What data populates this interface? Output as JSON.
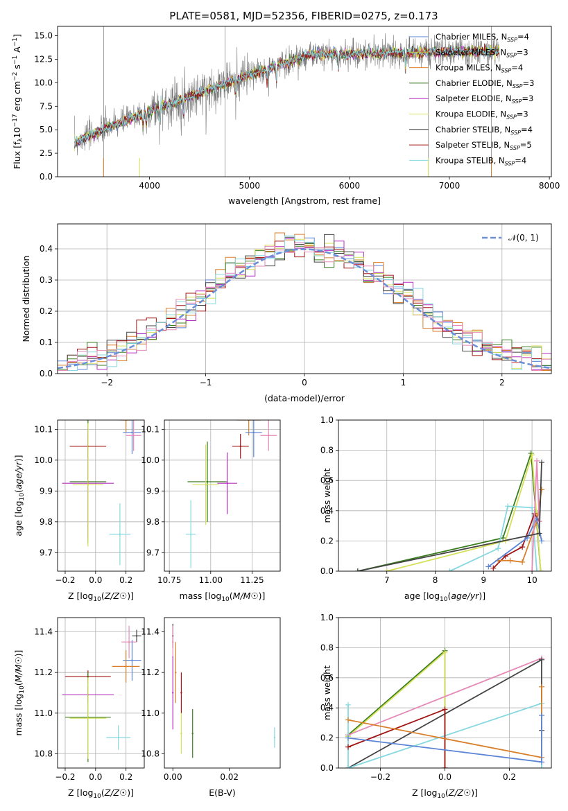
{
  "figure": {
    "title": "PLATE=0581, MJD=52356, FIBERID=0275, z=0.173"
  },
  "colors": {
    "chabrier_miles": "#5b84d6",
    "salpeter_miles": "#cccc33",
    "kroupa_miles": "#d97f2a",
    "chabrier_elodie": "#3a7d1e",
    "salpeter_elodie": "#b52fc0",
    "kroupa_elodie": "#d6e05a",
    "chabrier_stelib": "#444444",
    "salpeter_stelib": "#a31515",
    "kroupa_stelib": "#86d8e0",
    "gauss": "#6a8fd8",
    "pink": "#e68ab8"
  },
  "chart_data": [
    {
      "id": "spectrum",
      "type": "line",
      "xlabel": "wavelength [Angstrom, rest frame]",
      "ylabel": "Flux [f$_\\lambda$10$^{-17}$ erg cm$^{-2}$ s$^{-1}$ A$^{-1}$]",
      "ylabel_main": "Flux [f",
      "ylabel_rest": "10",
      "ylabel_sup1": "−17",
      "ylabel_mid": " erg cm",
      "ylabel_sup2": "−2",
      "ylabel_s": " s",
      "ylabel_sup3": "−1",
      "ylabel_a": " A",
      "ylabel_sup4": "−1",
      "ylabel_end": "]",
      "xlim": [
        3080,
        8020
      ],
      "ylim": [
        0,
        16
      ],
      "xticks": [
        4000,
        5000,
        6000,
        7000,
        8000
      ],
      "yticks": [
        0.0,
        2.5,
        5.0,
        7.5,
        10.0,
        12.5,
        15.0
      ],
      "grid": false,
      "legend_position": "lower-right",
      "data_range": [
        3250,
        7500
      ],
      "skyline_x": [
        3540,
        4755,
        6790,
        7420
      ],
      "legend": [
        {
          "label": "Chabrier MILES, N",
          "sub": "SSP",
          "n": "=4",
          "color_key": "chabrier_miles"
        },
        {
          "label": "Salpeter MILES, N",
          "sub": "SSP",
          "n": "=3",
          "color_key": "salpeter_miles"
        },
        {
          "label": "Kroupa MILES, N",
          "sub": "SSP",
          "n": "=4",
          "color_key": "kroupa_miles"
        },
        {
          "label": "Chabrier ELODIE, N",
          "sub": "SSP",
          "n": "=3",
          "color_key": "chabrier_elodie"
        },
        {
          "label": "Salpeter ELODIE, N",
          "sub": "SSP",
          "n": "=3",
          "color_key": "salpeter_elodie"
        },
        {
          "label": "Kroupa ELODIE, N",
          "sub": "SSP",
          "n": "=3",
          "color_key": "kroupa_elodie"
        },
        {
          "label": "Chabrier STELIB, N",
          "sub": "SSP",
          "n": "=4",
          "color_key": "chabrier_stelib"
        },
        {
          "label": "Salpeter STELIB, N",
          "sub": "SSP",
          "n": "=5",
          "color_key": "salpeter_stelib"
        },
        {
          "label": "Kroupa STELIB, N",
          "sub": "SSP",
          "n": "=4",
          "color_key": "kroupa_stelib"
        }
      ]
    },
    {
      "id": "residuals",
      "type": "line",
      "xlabel": "(data-model)/error",
      "ylabel": "Normed distribution",
      "xlim": [
        -2.5,
        2.5
      ],
      "ylim": [
        0,
        0.48
      ],
      "xticks": [
        -2,
        -1,
        0,
        1,
        2
      ],
      "yticks": [
        0.0,
        0.1,
        0.2,
        0.3,
        0.4
      ],
      "grid": true,
      "legend_position": "top-right",
      "legend_label": "𝒩(0, 1)",
      "bin_width": 0.1
    },
    {
      "id": "age_vs_Z",
      "type": "scatter",
      "xlabel": "Z [log",
      "xlabel_full": "Z [log$_{10}$($Z/Z_\\odot$)]",
      "ylabel": "age  [log$_{10}$($age/yr$)]",
      "xlim": [
        -0.25,
        0.32
      ],
      "ylim": [
        9.64,
        10.13
      ],
      "xticks": [
        -0.2,
        0.0,
        0.2
      ],
      "yticks": [
        9.7,
        9.8,
        9.9,
        10.0,
        10.1
      ],
      "grid": true,
      "points": [
        {
          "x": 0.27,
          "y": 10.16,
          "xerr": 0.03,
          "yerr": 0.02,
          "color_key": "chabrier_stelib"
        },
        {
          "x": 0.2,
          "y": 10.13,
          "xerr": 0.04,
          "yerr": 0.04,
          "color_key": "kroupa_miles"
        },
        {
          "x": 0.24,
          "y": 10.09,
          "xerr": 0.06,
          "yerr": 0.07,
          "color_key": "chabrier_miles"
        },
        {
          "x": 0.25,
          "y": 10.08,
          "xerr": 0.05,
          "yerr": 0.05,
          "color_key": "pink"
        },
        {
          "x": -0.05,
          "y": 10.045,
          "xerr": 0.12,
          "yerr": 0.04,
          "color_key": "salpeter_stelib"
        },
        {
          "x": -0.05,
          "y": 9.93,
          "xerr": 0.12,
          "yerr": 0.2,
          "color_key": "chabrier_elodie"
        },
        {
          "x": -0.05,
          "y": 9.925,
          "xerr": 0.17,
          "yerr": 0.18,
          "color_key": "salpeter_elodie"
        },
        {
          "x": -0.05,
          "y": 9.92,
          "xerr": 0.1,
          "yerr": 0.2,
          "color_key": "kroupa_elodie"
        },
        {
          "x": 0.16,
          "y": 9.76,
          "xerr": 0.07,
          "yerr": 0.1,
          "color_key": "kroupa_stelib"
        }
      ]
    },
    {
      "id": "age_vs_mass",
      "type": "scatter",
      "xlabel": "mass [log",
      "ylabel": "",
      "xlim": [
        10.72,
        11.42
      ],
      "ylim": [
        9.64,
        10.13
      ],
      "xticks": [
        10.75,
        11.0,
        11.25
      ],
      "yticks": [
        9.7,
        9.8,
        9.9,
        10.0,
        10.1
      ],
      "grid": true,
      "points": [
        {
          "x": 11.37,
          "y": 10.16,
          "xerr": 0.02,
          "yerr": 0.02,
          "color_key": "chabrier_stelib"
        },
        {
          "x": 11.23,
          "y": 10.13,
          "xerr": 0.07,
          "yerr": 0.05,
          "color_key": "kroupa_miles"
        },
        {
          "x": 11.26,
          "y": 10.09,
          "xerr": 0.05,
          "yerr": 0.08,
          "color_key": "chabrier_miles"
        },
        {
          "x": 11.35,
          "y": 10.08,
          "xerr": 0.05,
          "yerr": 0.05,
          "color_key": "pink"
        },
        {
          "x": 11.18,
          "y": 10.045,
          "xerr": 0.05,
          "yerr": 0.04,
          "color_key": "salpeter_stelib"
        },
        {
          "x": 10.98,
          "y": 9.93,
          "xerr": 0.12,
          "yerr": 0.13,
          "color_key": "chabrier_elodie"
        },
        {
          "x": 11.1,
          "y": 9.925,
          "xerr": 0.06,
          "yerr": 0.1,
          "color_key": "salpeter_elodie"
        },
        {
          "x": 10.97,
          "y": 9.92,
          "xerr": 0.08,
          "yerr": 0.13,
          "color_key": "kroupa_elodie"
        },
        {
          "x": 10.88,
          "y": 9.76,
          "xerr": 0.03,
          "yerr": 0.11,
          "color_key": "kroupa_stelib"
        }
      ]
    },
    {
      "id": "weight_vs_age",
      "type": "line",
      "xlabel": "age  [log",
      "ylabel": "mass weight",
      "xlim": [
        6.0,
        10.4
      ],
      "ylim": [
        0,
        1.0
      ],
      "xticks": [
        7,
        8,
        9,
        10
      ],
      "yticks": [
        0.0,
        0.2,
        0.4,
        0.6,
        0.8,
        1.0
      ],
      "grid": true,
      "series": [
        {
          "color_key": "chabrier_elodie",
          "x": [
            6.4,
            9.4,
            9.98,
            10.18
          ],
          "y": [
            0.0,
            0.22,
            0.78,
            0.0
          ]
        },
        {
          "color_key": "kroupa_elodie",
          "x": [
            7.0,
            9.45,
            10.0,
            10.18
          ],
          "y": [
            0.0,
            0.2,
            0.77,
            0.0
          ]
        },
        {
          "color_key": "kroupa_stelib",
          "x": [
            8.3,
            9.3,
            9.5,
            10.0,
            10.1
          ],
          "y": [
            0.0,
            0.15,
            0.43,
            0.42,
            0.0
          ]
        },
        {
          "color_key": "salpeter_stelib",
          "x": [
            9.2,
            9.45,
            9.8,
            10.05,
            10.15
          ],
          "y": [
            0.02,
            0.1,
            0.16,
            0.38,
            0.33
          ]
        },
        {
          "color_key": "kroupa_miles",
          "x": [
            9.3,
            9.55,
            9.8,
            10.1,
            10.2
          ],
          "y": [
            0.07,
            0.07,
            0.06,
            0.33,
            0.54
          ]
        },
        {
          "color_key": "chabrier_miles",
          "x": [
            9.1,
            9.9,
            10.1,
            10.2
          ],
          "y": [
            0.03,
            0.22,
            0.35,
            0.2
          ]
        },
        {
          "color_key": "pink",
          "x": [
            10.0,
            10.1,
            10.15
          ],
          "y": [
            0.0,
            0.73,
            0.33
          ]
        },
        {
          "color_key": "chabrier_stelib",
          "x": [
            6.4,
            10.15,
            10.2
          ],
          "y": [
            0.0,
            0.25,
            0.72
          ]
        }
      ]
    },
    {
      "id": "mass_vs_Z",
      "type": "scatter",
      "xlabel": "Z [log",
      "ylabel": "mass [log",
      "xlim": [
        -0.25,
        0.32
      ],
      "ylim": [
        10.73,
        11.47
      ],
      "xticks": [
        -0.2,
        0.0,
        0.2
      ],
      "yticks": [
        10.8,
        11.0,
        11.2,
        11.4
      ],
      "grid": true,
      "points": [
        {
          "x": 0.27,
          "y": 11.38,
          "xerr": 0.03,
          "yerr": 0.03,
          "color_key": "chabrier_stelib"
        },
        {
          "x": 0.22,
          "y": 11.35,
          "xerr": 0.05,
          "yerr": 0.08,
          "color_key": "pink"
        },
        {
          "x": 0.24,
          "y": 11.26,
          "xerr": 0.06,
          "yerr": 0.1,
          "color_key": "chabrier_miles"
        },
        {
          "x": 0.2,
          "y": 11.23,
          "xerr": 0.09,
          "yerr": 0.08,
          "color_key": "kroupa_miles"
        },
        {
          "x": -0.05,
          "y": 11.18,
          "xerr": 0.15,
          "yerr": 0.03,
          "color_key": "salpeter_stelib"
        },
        {
          "x": -0.05,
          "y": 11.09,
          "xerr": 0.17,
          "yerr": 0.04,
          "color_key": "salpeter_elodie"
        },
        {
          "x": -0.05,
          "y": 10.98,
          "xerr": 0.15,
          "yerr": 0.22,
          "color_key": "chabrier_elodie"
        },
        {
          "x": -0.05,
          "y": 10.975,
          "xerr": 0.12,
          "yerr": 0.2,
          "color_key": "kroupa_elodie"
        },
        {
          "x": 0.15,
          "y": 10.88,
          "xerr": 0.08,
          "yerr": 0.06,
          "color_key": "kroupa_stelib"
        }
      ]
    },
    {
      "id": "mass_vs_EBV",
      "type": "scatter",
      "xlabel": "E(B-V)",
      "ylabel": "",
      "xlim": [
        -0.003,
        0.038
      ],
      "ylim": [
        10.73,
        11.47
      ],
      "xticks": [
        0.0,
        0.02
      ],
      "yticks": [
        10.8,
        11.0,
        11.2,
        11.4
      ],
      "grid": false,
      "points": [
        {
          "x": 0.0,
          "y": 11.38,
          "xerr": 0,
          "yerr": 0.06,
          "color_key": "chabrier_stelib"
        },
        {
          "x": 0.0,
          "y": 11.35,
          "xerr": 0,
          "yerr": 0.08,
          "color_key": "pink"
        },
        {
          "x": 0.0,
          "y": 11.1,
          "xerr": 0,
          "yerr": 0.18,
          "color_key": "salpeter_elodie"
        },
        {
          "x": 0.001,
          "y": 11.2,
          "xerr": 0,
          "yerr": 0.15,
          "color_key": "kroupa_miles"
        },
        {
          "x": 0.003,
          "y": 11.1,
          "xerr": 0,
          "yerr": 0.1,
          "color_key": "salpeter_stelib"
        },
        {
          "x": 0.003,
          "y": 10.9,
          "xerr": 0,
          "yerr": 0.1,
          "color_key": "kroupa_elodie"
        },
        {
          "x": 0.007,
          "y": 10.9,
          "xerr": 0,
          "yerr": 0.12,
          "color_key": "chabrier_elodie"
        },
        {
          "x": 0.036,
          "y": 10.88,
          "xerr": 0,
          "yerr": 0.05,
          "color_key": "kroupa_stelib"
        }
      ]
    },
    {
      "id": "weight_vs_Z",
      "type": "line",
      "xlabel": "Z [log",
      "ylabel": "mass weight",
      "xlim": [
        -0.33,
        0.33
      ],
      "ylim": [
        0,
        1.0
      ],
      "xticks": [
        -0.2,
        0.0,
        0.2
      ],
      "yticks": [
        0.0,
        0.2,
        0.4,
        0.6,
        0.8,
        1.0
      ],
      "grid": true,
      "series": [
        {
          "color_key": "chabrier_elodie",
          "x": [
            -0.3,
            0.0,
            0.0
          ],
          "y": [
            0.22,
            0.78,
            0.0
          ]
        },
        {
          "color_key": "kroupa_elodie",
          "x": [
            -0.3,
            0.0,
            0.0
          ],
          "y": [
            0.21,
            0.77,
            0.0
          ]
        },
        {
          "color_key": "pink",
          "x": [
            -0.3,
            0.3
          ],
          "y": [
            0.22,
            0.73
          ]
        },
        {
          "color_key": "chabrier_stelib",
          "x": [
            -0.3,
            0.3,
            0.3
          ],
          "y": [
            0.0,
            0.72,
            0.25
          ]
        },
        {
          "color_key": "kroupa_stelib",
          "x": [
            -0.3,
            -0.3,
            0.3,
            0.3
          ],
          "y": [
            0.42,
            0.0,
            0.43,
            0.0
          ]
        },
        {
          "color_key": "salpeter_stelib",
          "x": [
            -0.3,
            0.0,
            0.0
          ],
          "y": [
            0.14,
            0.39,
            0.0
          ]
        },
        {
          "color_key": "kroupa_miles",
          "x": [
            -0.3,
            0.3,
            0.3
          ],
          "y": [
            0.32,
            0.07,
            0.54
          ]
        },
        {
          "color_key": "chabrier_miles",
          "x": [
            -0.3,
            0.3,
            0.3
          ],
          "y": [
            0.2,
            0.04,
            0.35
          ]
        }
      ]
    }
  ]
}
